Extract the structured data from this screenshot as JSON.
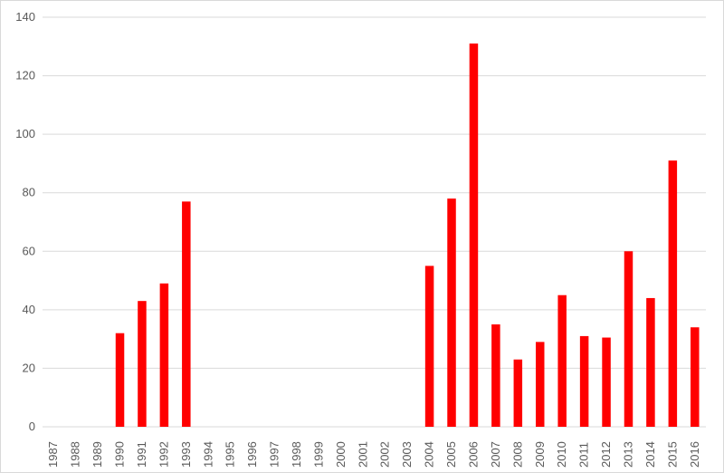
{
  "chart_data": {
    "type": "bar",
    "title": "",
    "xlabel": "",
    "ylabel": "",
    "categories": [
      "1987",
      "1988",
      "1989",
      "1990",
      "1991",
      "1992",
      "1993",
      "1994",
      "1995",
      "1996",
      "1997",
      "1998",
      "1999",
      "2000",
      "2001",
      "2002",
      "2003",
      "2004",
      "2005",
      "2006",
      "2007",
      "2008",
      "2009",
      "2010",
      "2011",
      "2012",
      "2013",
      "2014",
      "2015",
      "2016"
    ],
    "values": [
      0,
      0,
      0,
      32,
      43,
      49,
      77,
      0,
      0,
      0,
      0,
      0,
      0,
      0,
      0,
      0,
      0,
      55,
      78,
      131,
      35,
      23,
      29,
      45,
      31,
      30.5,
      60,
      44,
      91,
      34
    ],
    "ylim": [
      0,
      140
    ],
    "yticks": [
      "0",
      "20",
      "40",
      "60",
      "80",
      "100",
      "120",
      "140"
    ],
    "grid": true,
    "legend": "none",
    "bar_color": "#ff0000",
    "grid_color": "#d9d9d9",
    "tick_color": "#595959"
  }
}
